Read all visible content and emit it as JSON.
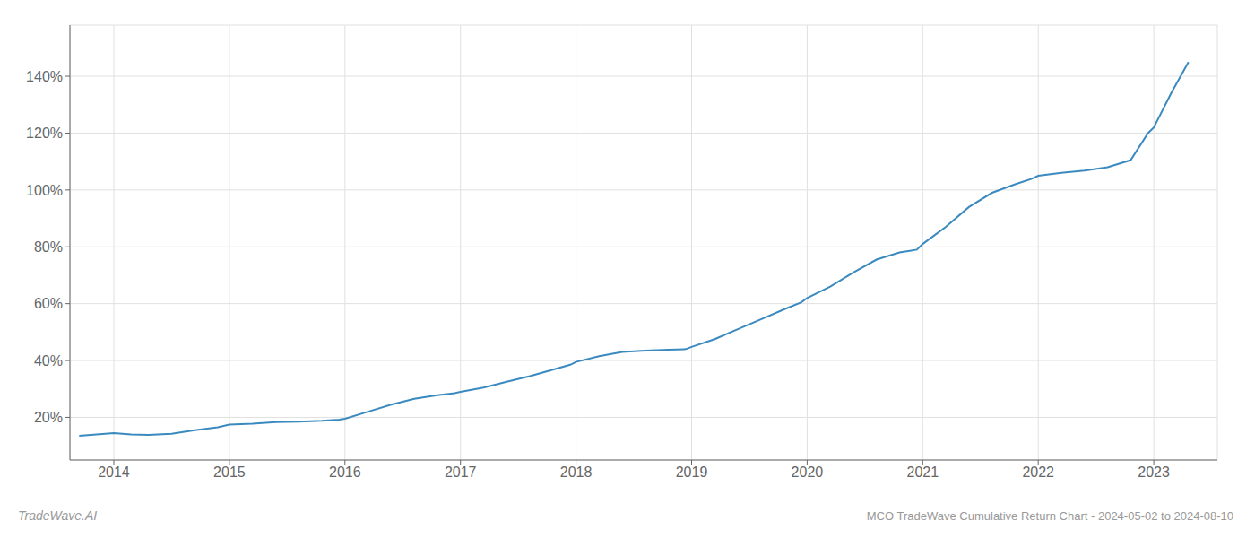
{
  "chart_data": {
    "type": "line",
    "title": "MCO TradeWave Cumulative Return Chart - 2024-05-02 to 2024-08-10",
    "annotations": [
      "TradeWave.AI"
    ],
    "color": "#3a8abf",
    "grid": true,
    "xlim": [
      2013.62,
      2023.55
    ],
    "ylim": [
      0.05,
      1.58
    ],
    "xticks": [
      2014,
      2015,
      2016,
      2017,
      2018,
      2019,
      2020,
      2021,
      2022,
      2023
    ],
    "yticks": [
      {
        "value": 0.2,
        "label": "20%"
      },
      {
        "value": 0.4,
        "label": "40%"
      },
      {
        "value": 0.6,
        "label": "60%"
      },
      {
        "value": 0.8,
        "label": "80%"
      },
      {
        "value": 1.0,
        "label": "100%"
      },
      {
        "value": 1.2,
        "label": "120%"
      },
      {
        "value": 1.4,
        "label": "140%"
      }
    ],
    "x": [
      2013.7,
      2014.0,
      2014.15,
      2014.3,
      2014.5,
      2014.7,
      2014.9,
      2015.0,
      2015.2,
      2015.4,
      2015.6,
      2015.8,
      2015.95,
      2016.0,
      2016.2,
      2016.4,
      2016.6,
      2016.8,
      2016.95,
      2017.0,
      2017.2,
      2017.4,
      2017.6,
      2017.8,
      2017.95,
      2018.0,
      2018.2,
      2018.4,
      2018.6,
      2018.8,
      2018.95,
      2019.0,
      2019.2,
      2019.4,
      2019.6,
      2019.8,
      2019.95,
      2020.0,
      2020.2,
      2020.4,
      2020.6,
      2020.8,
      2020.95,
      2021.0,
      2021.2,
      2021.4,
      2021.6,
      2021.8,
      2021.95,
      2022.0,
      2022.2,
      2022.4,
      2022.6,
      2022.8,
      2022.95,
      2023.0,
      2023.15,
      2023.3
    ],
    "values": [
      0.135,
      0.145,
      0.14,
      0.138,
      0.142,
      0.155,
      0.165,
      0.175,
      0.178,
      0.183,
      0.185,
      0.188,
      0.192,
      0.195,
      0.22,
      0.245,
      0.265,
      0.278,
      0.285,
      0.29,
      0.305,
      0.325,
      0.345,
      0.368,
      0.385,
      0.395,
      0.415,
      0.43,
      0.435,
      0.438,
      0.44,
      0.448,
      0.475,
      0.51,
      0.545,
      0.58,
      0.605,
      0.62,
      0.66,
      0.71,
      0.755,
      0.78,
      0.79,
      0.81,
      0.87,
      0.94,
      0.99,
      1.02,
      1.04,
      1.05,
      1.06,
      1.068,
      1.08,
      1.105,
      1.2,
      1.22,
      1.34,
      1.45
    ]
  }
}
